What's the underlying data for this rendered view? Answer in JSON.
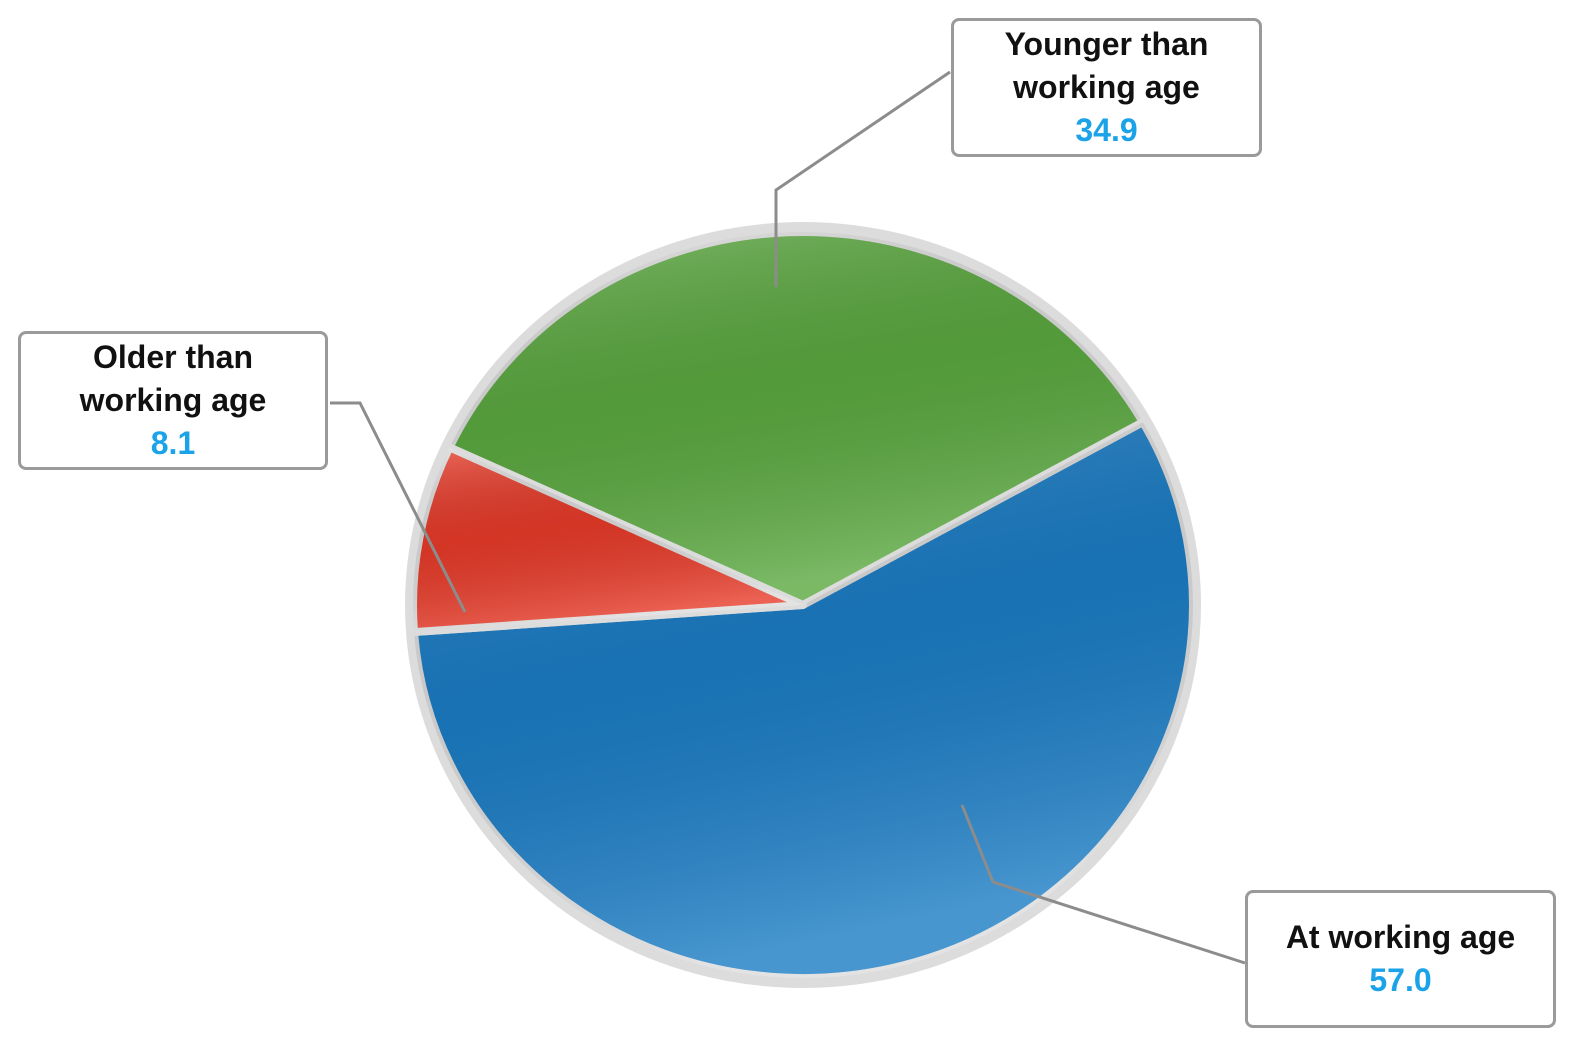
{
  "chart_data": {
    "type": "pie",
    "categories": [
      "Younger than\nworking age",
      "At working age",
      "Older than\nworking age"
    ],
    "values": [
      34.9,
      57.0,
      8.1
    ],
    "value_labels": [
      "34.9",
      "57.0",
      "8.1"
    ],
    "colors": [
      "#5aa83f",
      "#1a7cc4",
      "#e63a28"
    ]
  }
}
